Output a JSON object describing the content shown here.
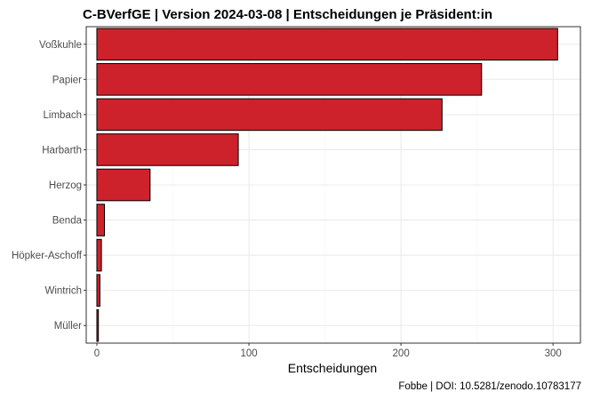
{
  "chart_data": {
    "type": "bar",
    "orientation": "horizontal",
    "title": "C-BVerfGE | Version 2024-03-08 | Entscheidungen je Präsident:in",
    "xlabel": "Entscheidungen",
    "ylabel": "",
    "caption": "Fobbe | DOI: 10.5281/zenodo.10783177",
    "categories": [
      "Voßkuhle",
      "Papier",
      "Limbach",
      "Harbarth",
      "Herzog",
      "Benda",
      "Höpker-Aschoff",
      "Wintrich",
      "Müller"
    ],
    "values": [
      303,
      253,
      227,
      93,
      35,
      5,
      3,
      2,
      1
    ],
    "xlim": [
      -7,
      318
    ],
    "x_ticks": [
      0,
      100,
      200,
      300
    ],
    "grid": true,
    "legend": "none",
    "colors": {
      "bar_fill": "#cd222b",
      "bar_stroke": "#000000",
      "grid_major": "#ebebeb",
      "grid_minor": "#f5f5f5",
      "panel_border": "#333333"
    }
  }
}
